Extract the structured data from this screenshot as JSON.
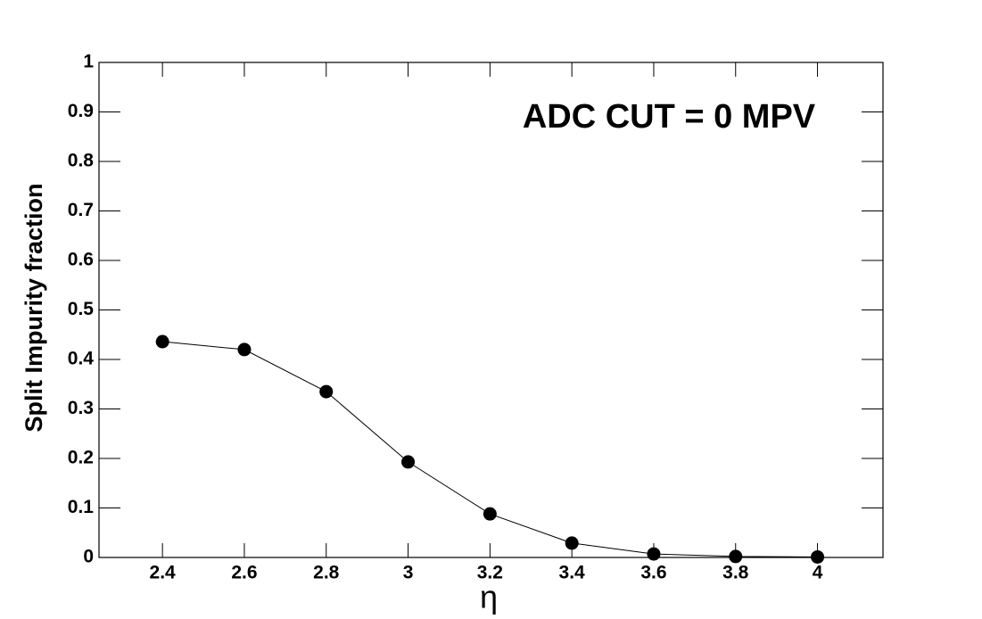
{
  "chart_data": {
    "type": "line",
    "annotation": "ADC CUT = 0 MPV",
    "x_label": "η",
    "y_label": "Split Impurity fraction",
    "x": [
      2.4,
      2.6,
      2.8,
      3.0,
      3.2,
      3.4,
      3.6,
      3.8,
      4.0
    ],
    "series": [
      {
        "color": "#000000",
        "values": [
          0.436,
          0.42,
          0.335,
          0.193,
          0.088,
          0.029,
          0.007,
          0.002,
          0.001
        ]
      }
    ],
    "xlim": [
      2.245,
      4.16
    ],
    "ylim": [
      0,
      1
    ],
    "xticks": [
      2.4,
      2.6,
      2.8,
      3,
      3.2,
      3.4,
      3.6,
      3.8,
      4
    ],
    "yticks": [
      0,
      0.1,
      0.2,
      0.3,
      0.4,
      0.5,
      0.6,
      0.7,
      0.8,
      0.9,
      1
    ]
  }
}
